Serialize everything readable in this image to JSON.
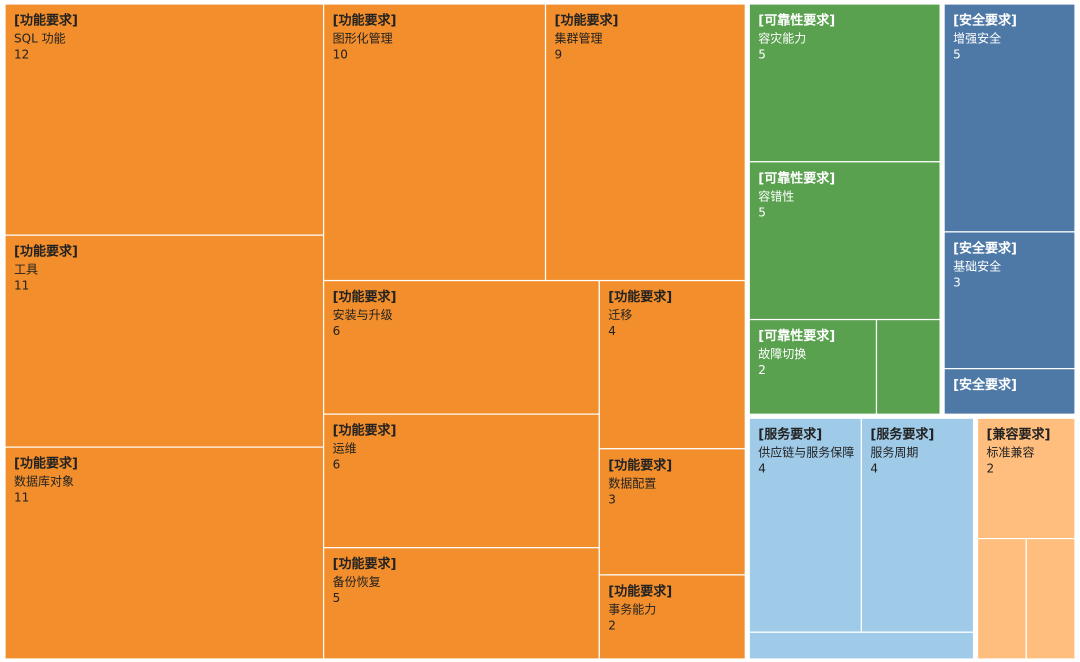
{
  "chart_data": {
    "type": "treemap",
    "series": [
      {
        "name": "[功能要求]",
        "color": "#f28e2b",
        "text_color": "#222222",
        "items": [
          {
            "name": "SQL 功能",
            "value": 12
          },
          {
            "name": "工具",
            "value": 11
          },
          {
            "name": "数据库对象",
            "value": 11
          },
          {
            "name": "图形化管理",
            "value": 10
          },
          {
            "name": "集群管理",
            "value": 9
          },
          {
            "name": "安装与升级",
            "value": 6
          },
          {
            "name": "运维",
            "value": 6
          },
          {
            "name": "备份恢复",
            "value": 5
          },
          {
            "name": "迁移",
            "value": 4
          },
          {
            "name": "数据配置",
            "value": 3
          },
          {
            "name": "事务能力",
            "value": 2
          }
        ]
      },
      {
        "name": "[可靠性要求]",
        "color": "#59a14f",
        "text_color": "#ffffff",
        "items": [
          {
            "name": "容灾能力",
            "value": 5
          },
          {
            "name": "容错性",
            "value": 5
          },
          {
            "name": "故障切换",
            "value": 2
          },
          {
            "name": null,
            "value": 1
          }
        ]
      },
      {
        "name": "[安全要求]",
        "color": "#4e79a7",
        "text_color": "#ffffff",
        "items": [
          {
            "name": "增强安全",
            "value": 5
          },
          {
            "name": "基础安全",
            "value": 3
          },
          {
            "name": null,
            "value": 1
          }
        ]
      },
      {
        "name": "[服务要求]",
        "color": "#a0cbe8",
        "text_color": "#222222",
        "items": [
          {
            "name": "供应链与服务保障",
            "value": 4
          },
          {
            "name": "服务周期",
            "value": 4
          },
          {
            "name": null,
            "value": 1
          }
        ]
      },
      {
        "name": "[兼容要求]",
        "color": "#ffbe7d",
        "text_color": "#222222",
        "items": [
          {
            "name": "标准兼容",
            "value": 2
          },
          {
            "name": null,
            "value": 1
          },
          {
            "name": null,
            "value": 1
          }
        ]
      }
    ]
  }
}
